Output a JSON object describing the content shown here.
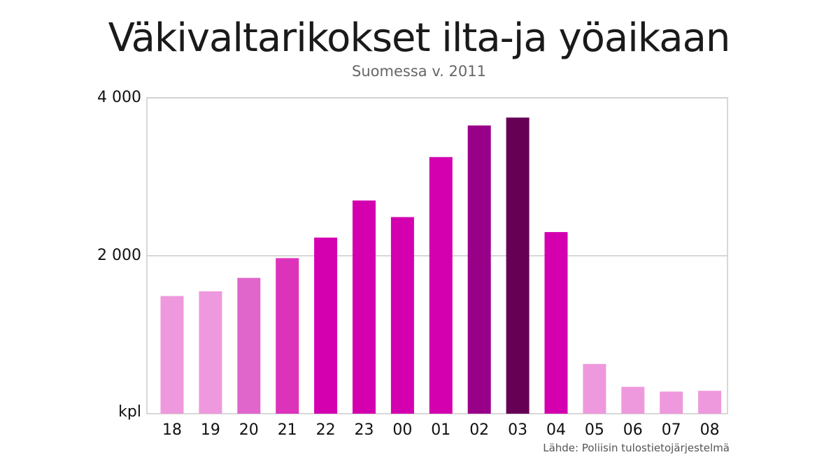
{
  "chart_data": {
    "type": "bar",
    "title": "Väkivaltarikokset ilta-ja yöaikaan",
    "subtitle": "Suomessa v. 2011",
    "xlabel": "",
    "ylabel": "kpl",
    "categories": [
      "18",
      "19",
      "20",
      "21",
      "22",
      "23",
      "00",
      "01",
      "02",
      "03",
      "04",
      "05",
      "06",
      "07",
      "08"
    ],
    "values": [
      1490,
      1550,
      1720,
      1970,
      2230,
      2700,
      2490,
      3250,
      3650,
      3750,
      2300,
      630,
      340,
      280,
      290
    ],
    "colors": [
      "#ee99dd",
      "#ee99dd",
      "#e066cc",
      "#dd33bb",
      "#d400b0",
      "#d400b0",
      "#d400b0",
      "#d400b0",
      "#990088",
      "#660055",
      "#d400b0",
      "#ee99dd",
      "#ee99dd",
      "#ee99dd",
      "#ee99dd"
    ],
    "ylim": [
      0,
      4000
    ],
    "yticks": [
      {
        "value": 4000,
        "label": "4 000"
      },
      {
        "value": 2000,
        "label": "2 000"
      }
    ],
    "y_unit_label": "kpl",
    "grid": true,
    "source": "Lähde: Poliisin tulostietojärjestelmä"
  }
}
